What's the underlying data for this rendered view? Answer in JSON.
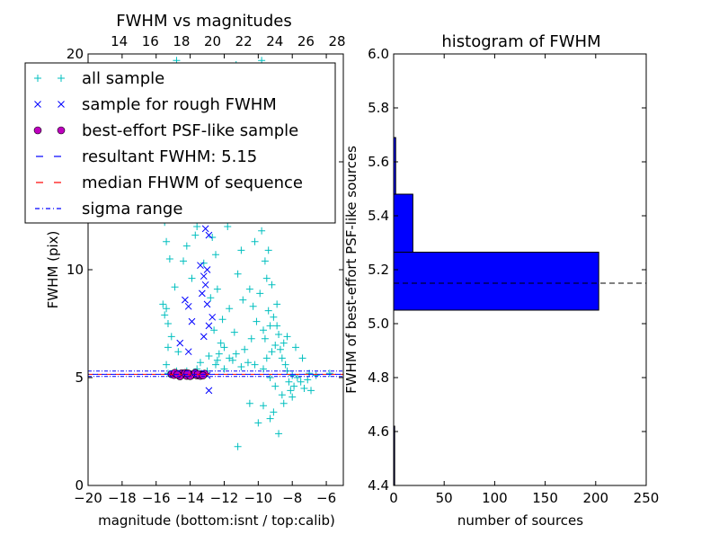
{
  "chart_data": [
    {
      "type": "scatter",
      "title": "FWHM vs magnitudes",
      "xlabel": "magnitude (bottom:isnt / top:calib)",
      "ylabel": "FWHM (pix)",
      "xlim": [
        -20,
        -5
      ],
      "ylim": [
        0,
        20
      ],
      "x_ticks": [
        "−20",
        "−18",
        "−16",
        "−14",
        "−12",
        "−10",
        "−8",
        "−6"
      ],
      "x_tick_values": [
        -20,
        -18,
        -16,
        -14,
        -12,
        -10,
        -8,
        -6
      ],
      "y_ticks": [
        "0",
        "5",
        "10",
        "15",
        "20"
      ],
      "y_tick_values": [
        0,
        5,
        10,
        15,
        20
      ],
      "top_ticks": [
        "14",
        "16",
        "18",
        "20",
        "22",
        "24",
        "26",
        "28"
      ],
      "top_tick_values": [
        14,
        16,
        18,
        20,
        22,
        24,
        26,
        28
      ],
      "top_xlim": [
        12.0,
        28.4
      ],
      "grid": false,
      "legend_location": "upper-left",
      "legend": [
        {
          "label": "all sample",
          "marker": "+",
          "color": "#00bfbf"
        },
        {
          "label": "sample for rough FWHM",
          "marker": "x",
          "color": "#0000ff"
        },
        {
          "label": "best-effort PSF-like sample",
          "marker": "o",
          "color": "#bf00bf"
        },
        {
          "label": "resultant FWHM: 5.15",
          "marker": "dashed",
          "color": "#0000ff"
        },
        {
          "label": "median FHWM of sequence",
          "marker": "dashed",
          "color": "#ff0000"
        },
        {
          "label": "sigma range",
          "marker": "dashdot",
          "color": "#0000ff"
        }
      ],
      "reference_lines": {
        "resultant_fwhm": 5.15,
        "median_fwhm": 5.15,
        "sigma_range": [
          5.05,
          5.3
        ]
      },
      "series": [
        {
          "name": "all sample",
          "color": "#00bfbf",
          "marker": "+",
          "points": [
            [
              -15.6,
              8.4
            ],
            [
              -15.5,
              7.9
            ],
            [
              -15.4,
              8.2
            ],
            [
              -15.3,
              6.4
            ],
            [
              -15.5,
              12.2
            ],
            [
              -15.4,
              11.3
            ],
            [
              -15.2,
              13.6
            ],
            [
              -15.1,
              17.6
            ],
            [
              -15.0,
              18.2
            ],
            [
              -14.8,
              19.7
            ],
            [
              -15.3,
              7.5
            ],
            [
              -15.4,
              5.6
            ],
            [
              -15.2,
              10.5
            ],
            [
              -14.6,
              13.3
            ],
            [
              -14.2,
              11.1
            ],
            [
              -14.5,
              16.4
            ],
            [
              -14.0,
              14.7
            ],
            [
              -14.3,
              12.8
            ],
            [
              -13.8,
              15.0
            ],
            [
              -13.6,
              12.0
            ],
            [
              -13.3,
              15.6
            ],
            [
              -13.5,
              13.8
            ],
            [
              -13.7,
              11.6
            ],
            [
              -13.1,
              13.1
            ],
            [
              -12.8,
              8.7
            ],
            [
              -12.6,
              7.2
            ],
            [
              -12.4,
              9.1
            ],
            [
              -12.2,
              6.6
            ],
            [
              -12.5,
              10.7
            ],
            [
              -12.0,
              6.4
            ],
            [
              -11.8,
              12.0
            ],
            [
              -11.9,
              14.3
            ],
            [
              -11.6,
              17.3
            ],
            [
              -11.3,
              19.5
            ],
            [
              -11.1,
              13.6
            ],
            [
              -11.0,
              10.9
            ],
            [
              -10.8,
              16.0
            ],
            [
              -10.6,
              18.6
            ],
            [
              -10.4,
              14.2
            ],
            [
              -10.2,
              11.3
            ],
            [
              -10.0,
              17.3
            ],
            [
              -9.8,
              19.7
            ],
            [
              -10.5,
              9.1
            ],
            [
              -10.3,
              8.3
            ],
            [
              -10.1,
              7.6
            ],
            [
              -9.9,
              8.9
            ],
            [
              -9.7,
              7.2
            ],
            [
              -9.6,
              6.8
            ],
            [
              -9.5,
              9.6
            ],
            [
              -9.4,
              8.1
            ],
            [
              -9.3,
              7.4
            ],
            [
              -9.2,
              6.2
            ],
            [
              -9.1,
              7.8
            ],
            [
              -9.0,
              6.5
            ],
            [
              -10.9,
              8.6
            ],
            [
              -11.2,
              9.8
            ],
            [
              -11.4,
              7.1
            ],
            [
              -11.7,
              8.2
            ],
            [
              -12.1,
              7.7
            ],
            [
              -12.3,
              6.1
            ],
            [
              -9.6,
              10.4
            ],
            [
              -9.8,
              11.8
            ],
            [
              -10.0,
              12.5
            ],
            [
              -9.4,
              10.9
            ],
            [
              -9.2,
              9.3
            ],
            [
              -8.9,
              8.4
            ],
            [
              -8.8,
              7.0
            ],
            [
              -8.7,
              6.3
            ],
            [
              -8.6,
              5.9
            ],
            [
              -8.5,
              6.6
            ],
            [
              -8.4,
              5.6
            ],
            [
              -8.3,
              5.3
            ],
            [
              -8.2,
              4.8
            ],
            [
              -8.0,
              5.1
            ],
            [
              -7.9,
              4.6
            ],
            [
              -7.7,
              5.0
            ],
            [
              -7.5,
              4.8
            ],
            [
              -7.3,
              4.5
            ],
            [
              -7.1,
              4.9
            ],
            [
              -6.9,
              4.4
            ],
            [
              -8.1,
              4.4
            ],
            [
              -8.6,
              4.2
            ],
            [
              -9.0,
              4.6
            ],
            [
              -9.3,
              5.0
            ],
            [
              -9.7,
              5.4
            ],
            [
              -10.2,
              5.6
            ],
            [
              -10.6,
              5.7
            ],
            [
              -11.0,
              5.5
            ],
            [
              -11.5,
              5.8
            ],
            [
              -12.0,
              5.4
            ],
            [
              -12.5,
              5.6
            ],
            [
              -13.0,
              5.3
            ],
            [
              -13.6,
              5.4
            ],
            [
              -14.2,
              5.3
            ],
            [
              -14.8,
              5.3
            ],
            [
              -15.3,
              5.2
            ],
            [
              -9.7,
              3.7
            ],
            [
              -9.3,
              3.1
            ],
            [
              -8.8,
              2.4
            ],
            [
              -10.0,
              2.9
            ],
            [
              -10.5,
              3.8
            ],
            [
              -11.2,
              1.8
            ],
            [
              -9.1,
              3.4
            ],
            [
              -8.5,
              3.8
            ],
            [
              -8.0,
              4.1
            ],
            [
              -7.0,
              5.2
            ],
            [
              -6.6,
              5.1
            ],
            [
              -5.8,
              5.2
            ],
            [
              -7.4,
              5.9
            ],
            [
              -7.8,
              6.4
            ],
            [
              -8.3,
              6.9
            ],
            [
              -8.9,
              7.4
            ],
            [
              -9.5,
              5.9
            ],
            [
              -10.4,
              6.8
            ],
            [
              -10.8,
              6.3
            ],
            [
              -11.3,
              6.1
            ],
            [
              -11.7,
              5.9
            ],
            [
              -12.4,
              5.8
            ],
            [
              -12.9,
              6.0
            ],
            [
              -13.4,
              5.7
            ],
            [
              -9.9,
              15.4
            ],
            [
              -10.3,
              16.6
            ],
            [
              -10.7,
              17.1
            ],
            [
              -11.5,
              15.2
            ],
            [
              -12.2,
              13.4
            ],
            [
              -12.7,
              11.5
            ],
            [
              -13.2,
              10.3
            ],
            [
              -13.9,
              9.6
            ],
            [
              -14.4,
              10.4
            ],
            [
              -14.9,
              9.2
            ],
            [
              -15.1,
              6.9
            ],
            [
              -14.7,
              6.2
            ]
          ]
        },
        {
          "name": "sample for rough FWHM",
          "color": "#0000ff",
          "marker": "x",
          "points": [
            [
              -14.3,
              8.6
            ],
            [
              -14.1,
              8.3
            ],
            [
              -13.9,
              7.6
            ],
            [
              -13.2,
              9.7
            ],
            [
              -13.0,
              10.0
            ],
            [
              -13.1,
              9.3
            ],
            [
              -13.3,
              8.9
            ],
            [
              -13.0,
              8.4
            ],
            [
              -12.9,
              7.4
            ],
            [
              -13.2,
              6.9
            ],
            [
              -14.6,
              6.6
            ],
            [
              -14.1,
              6.2
            ],
            [
              -12.8,
              12.4
            ],
            [
              -12.9,
              11.6
            ],
            [
              -13.1,
              11.9
            ],
            [
              -14.2,
              15.2
            ],
            [
              -13.9,
              14.1
            ],
            [
              -12.9,
              4.4
            ],
            [
              -13.0,
              5.1
            ],
            [
              -13.5,
              5.2
            ],
            [
              -14.0,
              5.1
            ],
            [
              -14.5,
              5.2
            ],
            [
              -12.7,
              7.8
            ],
            [
              -13.4,
              10.2
            ]
          ]
        },
        {
          "name": "best-effort PSF-like sample",
          "color": "#bf00bf",
          "marker": "o",
          "points": [
            [
              -15.1,
              5.16
            ],
            [
              -14.95,
              5.12
            ],
            [
              -14.8,
              5.18
            ],
            [
              -14.65,
              5.1
            ],
            [
              -14.5,
              5.2
            ],
            [
              -14.35,
              5.14
            ],
            [
              -14.2,
              5.08
            ],
            [
              -14.05,
              5.17
            ],
            [
              -13.9,
              5.12
            ],
            [
              -13.75,
              5.19
            ],
            [
              -13.6,
              5.1
            ],
            [
              -13.45,
              5.15
            ],
            [
              -13.3,
              5.13
            ],
            [
              -13.15,
              5.18
            ],
            [
              -14.9,
              5.22
            ],
            [
              -14.6,
              5.06
            ],
            [
              -14.3,
              5.21
            ],
            [
              -14.0,
              5.07
            ],
            [
              -13.7,
              5.22
            ],
            [
              -13.4,
              5.08
            ],
            [
              -13.55,
              5.16
            ],
            [
              -14.15,
              5.2
            ],
            [
              -14.75,
              5.14
            ],
            [
              -13.25,
              5.1
            ]
          ]
        }
      ]
    },
    {
      "type": "bar",
      "orientation": "horizontal",
      "title": "histogram of FWHM",
      "xlabel": "number of sources",
      "ylabel": "FWHM of best-effort PSF-like sources",
      "xlim": [
        0,
        250
      ],
      "ylim": [
        4.4,
        6.0
      ],
      "x_ticks": [
        "0",
        "50",
        "100",
        "150",
        "200",
        "250"
      ],
      "x_tick_values": [
        0,
        50,
        100,
        150,
        200,
        250
      ],
      "y_ticks": [
        "4.4",
        "4.6",
        "4.8",
        "5.0",
        "5.2",
        "5.4",
        "5.6",
        "5.8",
        "6.0"
      ],
      "y_tick_values": [
        4.4,
        4.6,
        4.8,
        5.0,
        5.2,
        5.4,
        5.6,
        5.8,
        6.0
      ],
      "grid": false,
      "bar_color": "#0000ff",
      "bins": [
        {
          "y0": 4.4,
          "y1": 4.62,
          "count": 1
        },
        {
          "y0": 5.05,
          "y1": 5.265,
          "count": 203
        },
        {
          "y0": 5.265,
          "y1": 5.48,
          "count": 19
        },
        {
          "y0": 5.48,
          "y1": 5.69,
          "count": 2
        }
      ],
      "reference_line": {
        "value": 5.15,
        "style": "dashed",
        "color": "#000000"
      }
    }
  ]
}
